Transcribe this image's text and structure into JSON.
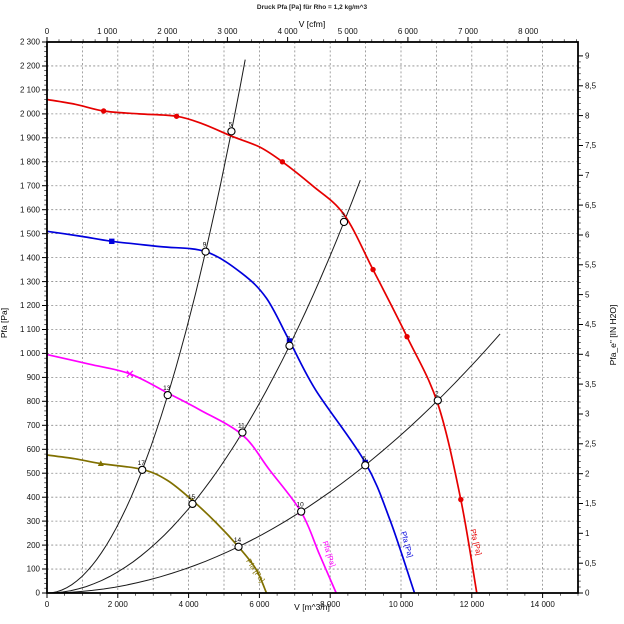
{
  "title": "Druck Pfa [Pa] für Rho = 1,2 kg/m^3",
  "chart_data": {
    "type": "line",
    "grid": "dashed",
    "axes": {
      "bottom": {
        "label": "V [m^3/h]",
        "min": 0,
        "max": 15000,
        "major": 2000,
        "minor": 500,
        "grid_every": 1000,
        "tick_labels": [
          "0",
          "2 000",
          "4 000",
          "6 000",
          "8 000",
          "10 000",
          "12 000",
          "14 000"
        ]
      },
      "top": {
        "label": "V [cfm]",
        "min": 0,
        "max": 8800,
        "major": 1000,
        "minor": 200,
        "tick_labels": [
          "0",
          "1 000",
          "2 000",
          "3 000",
          "4 000",
          "5 000",
          "6 000",
          "7 000",
          "8 000"
        ]
      },
      "left": {
        "label": "Pfa [Pa]",
        "min": 0,
        "max": 2300,
        "major": 100,
        "minor": 20,
        "grid_every": 100,
        "tick_labels": [
          "0",
          "100",
          "200",
          "300",
          "400",
          "500",
          "600",
          "700",
          "800",
          "900",
          "1 000",
          "1 100",
          "1 200",
          "1 300",
          "1 400",
          "1 500",
          "1 600",
          "1 700",
          "1 800",
          "1 900",
          "2 000",
          "2 100",
          "2 200",
          "2 300"
        ]
      },
      "right": {
        "label": "Pfa_e\" [IN H2O]",
        "min": 0,
        "max": 9,
        "major": 0.5,
        "minor": 0.1,
        "tick_labels": [
          "0",
          "0,5",
          "1",
          "1,5",
          "2",
          "2,5",
          "3",
          "3,5",
          "4",
          "4,5",
          "5",
          "5,5",
          "6",
          "6,5",
          "7",
          "7,5",
          "8",
          "8,5",
          "9"
        ]
      }
    },
    "series": [
      {
        "name": "fan-curve-red",
        "color": "#e60000",
        "curve_label": "Pfa [Pa]",
        "label_at": {
          "v": 12050,
          "p": 210,
          "angle": 76
        },
        "points": [
          [
            0,
            2060
          ],
          [
            800,
            2040
          ],
          [
            1600,
            2012
          ],
          [
            2600,
            2000
          ],
          [
            3660,
            1990
          ],
          [
            4400,
            1958
          ],
          [
            5210,
            1907
          ],
          [
            6000,
            1862
          ],
          [
            6650,
            1800
          ],
          [
            7500,
            1700
          ],
          [
            8390,
            1580
          ],
          [
            9210,
            1350
          ],
          [
            10170,
            1070
          ],
          [
            11040,
            790
          ],
          [
            11690,
            390
          ],
          [
            12140,
            0
          ]
        ],
        "marker": "dot",
        "marker_points": [
          [
            1600,
            2012
          ],
          [
            3660,
            1990
          ],
          [
            6650,
            1800
          ],
          [
            9210,
            1350
          ],
          [
            10170,
            1070
          ],
          [
            11690,
            390
          ]
        ]
      },
      {
        "name": "fan-curve-blue",
        "color": "#0000dd",
        "curve_label": "Pfa [Pa]",
        "label_at": {
          "v": 10100,
          "p": 200,
          "angle": 74
        },
        "points": [
          [
            0,
            1510
          ],
          [
            1000,
            1488
          ],
          [
            1830,
            1468
          ],
          [
            3200,
            1446
          ],
          [
            4480,
            1425
          ],
          [
            5500,
            1335
          ],
          [
            6200,
            1230
          ],
          [
            6850,
            1052
          ],
          [
            7600,
            845
          ],
          [
            8990,
            545
          ],
          [
            9700,
            300
          ],
          [
            10380,
            0
          ]
        ],
        "marker": "square",
        "marker_points": [
          [
            1830,
            1468
          ],
          [
            6850,
            1052
          ],
          [
            8990,
            545
          ]
        ]
      },
      {
        "name": "fan-curve-magenta",
        "color": "#ff00ff",
        "curve_label": "Pfa [Pa]",
        "label_at": {
          "v": 7900,
          "p": 160,
          "angle": 72
        },
        "points": [
          [
            0,
            995
          ],
          [
            1200,
            955
          ],
          [
            2340,
            915
          ],
          [
            3410,
            835
          ],
          [
            4310,
            765
          ],
          [
            5520,
            660
          ],
          [
            6280,
            515
          ],
          [
            7180,
            338
          ],
          [
            7700,
            160
          ],
          [
            8170,
            0
          ]
        ],
        "marker": "x",
        "marker_points": [
          [
            2340,
            915
          ],
          [
            5520,
            660
          ],
          [
            7180,
            338
          ]
        ]
      },
      {
        "name": "fan-curve-olive",
        "color": "#807000",
        "curve_label": "Pfa [Pa]",
        "label_at": {
          "v": 5830,
          "p": 88,
          "angle": 56
        },
        "points": [
          [
            0,
            576
          ],
          [
            800,
            560
          ],
          [
            1520,
            540
          ],
          [
            2690,
            516
          ],
          [
            3400,
            470
          ],
          [
            4110,
            386
          ],
          [
            4800,
            290
          ],
          [
            5410,
            193
          ],
          [
            5900,
            100
          ],
          [
            6200,
            0
          ]
        ],
        "marker": "triangle",
        "marker_points": [
          [
            1520,
            540
          ],
          [
            4110,
            386
          ],
          [
            5410,
            193
          ]
        ]
      }
    ],
    "system_curves": [
      {
        "name": "system-curve-steep",
        "k": 7.1e-05,
        "v_end": 5600
      },
      {
        "name": "system-curve-middle",
        "k": 2.2e-05,
        "v_end": 8850
      },
      {
        "name": "system-curve-shallow",
        "k": 6.6e-06,
        "v_end": 12800
      }
    ],
    "operating_points": [
      {
        "v": 5210,
        "p": 1927,
        "label": "5"
      },
      {
        "v": 4480,
        "p": 1425,
        "label": "9"
      },
      {
        "v": 3410,
        "p": 826,
        "label": "13"
      },
      {
        "v": 2690,
        "p": 514,
        "label": "17"
      },
      {
        "v": 8390,
        "p": 1549,
        "label": "3"
      },
      {
        "v": 6850,
        "p": 1032,
        "label": "7"
      },
      {
        "v": 5520,
        "p": 670,
        "label": "11"
      },
      {
        "v": 4110,
        "p": 372,
        "label": "15"
      },
      {
        "v": 11040,
        "p": 804,
        "label": "2"
      },
      {
        "v": 8990,
        "p": 533,
        "label": "6"
      },
      {
        "v": 7180,
        "p": 340,
        "label": "10"
      },
      {
        "v": 5410,
        "p": 193,
        "label": "14"
      }
    ],
    "colors": {
      "grid": "#8a8a8a",
      "axis": "#000000",
      "system_curve": "#1a1a1a"
    }
  }
}
